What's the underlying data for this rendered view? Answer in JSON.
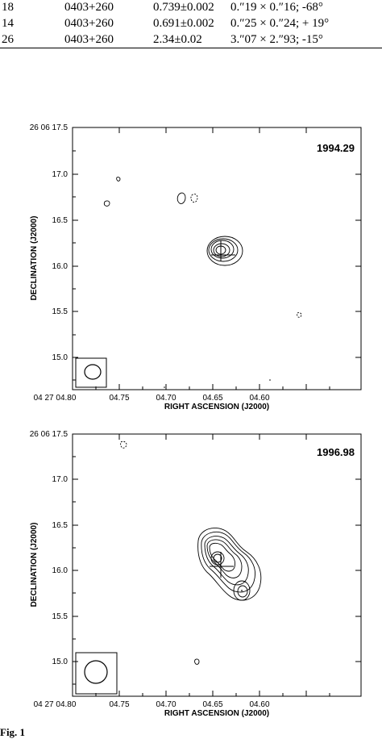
{
  "table": {
    "rows": [
      {
        "num": "18",
        "source": "0403+260",
        "flux": "0.739±0.002",
        "beam": "0.″19 × 0.″16;  -68°"
      },
      {
        "num": "14",
        "source": "0403+260",
        "flux": "0.691±0.002",
        "beam": "0.″25 × 0.″24;  + 19°"
      },
      {
        "num": "26",
        "source": "0403+260",
        "flux": "2.34±0.02",
        "beam": "3.″07 × 2.″93;  -15°"
      }
    ]
  },
  "panels": [
    {
      "epoch": "1994.29",
      "ylabel": "DECLINATION (J2000)",
      "xlabel": "RIGHT ASCENSION (J2000)",
      "yticks": [
        "26 06 17.5",
        "17.0",
        "16.5",
        "16.0",
        "15.5",
        "15.0"
      ],
      "xticks": [
        "04 27 04.80",
        "04.75",
        "04.70",
        "04.65",
        "04.60"
      ]
    },
    {
      "epoch": "1996.98",
      "ylabel": "DECLINATION (J2000)",
      "xlabel": "RIGHT ASCENSION (J2000)",
      "yticks": [
        "26 06 17.5",
        "17.0",
        "16.5",
        "16.0",
        "15.5",
        "15.0"
      ],
      "xticks": [
        "04 27 04.80",
        "04.75",
        "04.70",
        "04.65",
        "04.60"
      ]
    }
  ],
  "caption": "Fig. 1"
}
